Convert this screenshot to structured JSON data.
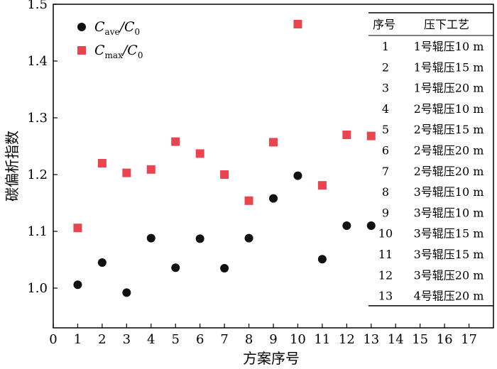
{
  "chart_data": {
    "type": "scatter",
    "xlabel": "方案序号",
    "ylabel": "碳偏析指数",
    "xlim": [
      0,
      18
    ],
    "ylim": [
      0.93,
      1.5
    ],
    "xticks": [
      0,
      1,
      2,
      3,
      4,
      5,
      6,
      7,
      8,
      9,
      10,
      11,
      12,
      13,
      14,
      15,
      16,
      17
    ],
    "yticks": [
      1.0,
      1.1,
      1.2,
      1.3,
      1.4,
      1.5
    ],
    "ytick_labels": [
      "1.0",
      "1.1",
      "1.2",
      "1.3",
      "1.4",
      "1.5"
    ],
    "grid": false,
    "legend_position": "top-left",
    "series": [
      {
        "key": "ave",
        "legend_main": "C",
        "legend_sub": "ave",
        "legend_sep": "/C",
        "legend_sub2": "0",
        "marker": "circle",
        "color": "#111111",
        "x": [
          1,
          2,
          3,
          4,
          5,
          6,
          7,
          8,
          9,
          10,
          11,
          12,
          13
        ],
        "y": [
          1.006,
          1.045,
          0.992,
          1.088,
          1.036,
          1.087,
          1.035,
          1.088,
          1.158,
          1.198,
          1.051,
          1.11,
          1.11
        ]
      },
      {
        "key": "max",
        "legend_main": "C",
        "legend_sub": "max",
        "legend_sep": "/C",
        "legend_sub2": "0",
        "marker": "square",
        "color": "#e8454f",
        "x": [
          1,
          2,
          3,
          4,
          5,
          6,
          7,
          8,
          9,
          10,
          11,
          12,
          13
        ],
        "y": [
          1.106,
          1.22,
          1.203,
          1.209,
          1.258,
          1.237,
          1.2,
          1.154,
          1.257,
          1.465,
          1.181,
          1.27,
          1.268
        ]
      }
    ],
    "table": {
      "headers": [
        "序号",
        "压下工艺"
      ],
      "rows": [
        [
          "1",
          "1号辊压10 m"
        ],
        [
          "2",
          "1号辊压15 m"
        ],
        [
          "3",
          "1号辊压20 m"
        ],
        [
          "4",
          "2号辊压10 m"
        ],
        [
          "5",
          "2号辊压15 m"
        ],
        [
          "6",
          "2号辊压20 m"
        ],
        [
          "7",
          "2号辊压20 m"
        ],
        [
          "8",
          "3号辊压10 m"
        ],
        [
          "9",
          "3号辊压10 m"
        ],
        [
          "10",
          "3号辊压15 m"
        ],
        [
          "11",
          "3号辊压15 m"
        ],
        [
          "12",
          "3号辊压20 m"
        ],
        [
          "13",
          "4号辊压20 m"
        ]
      ]
    }
  }
}
